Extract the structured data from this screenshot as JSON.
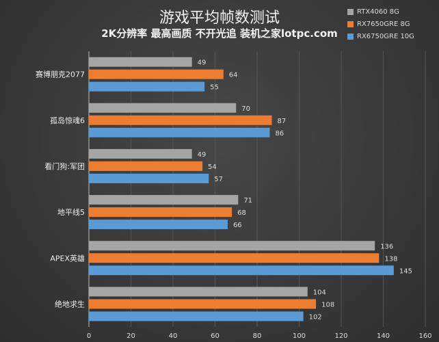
{
  "chart_data": {
    "type": "bar",
    "orientation": "horizontal",
    "title": "游戏平均帧数测试",
    "subtitle": "2K分辨率 最高画质 不开光追  装机之家lotpc.com",
    "categories": [
      "赛博朋克2077",
      "孤岛惊魂6",
      "看门狗:军团",
      "地平线5",
      "APEX英雄",
      "绝地求生"
    ],
    "series": [
      {
        "name": "RTX4060 8G",
        "color": "#a5a5a5",
        "values": [
          49,
          70,
          49,
          71,
          136,
          104
        ]
      },
      {
        "name": "RX7650GRE 8G",
        "color": "#ed7d31",
        "values": [
          64,
          87,
          54,
          68,
          138,
          108
        ]
      },
      {
        "name": "RX6750GRE 10G",
        "color": "#5b9bd5",
        "values": [
          55,
          86,
          57,
          66,
          145,
          102
        ]
      }
    ],
    "xlim": [
      0,
      160
    ],
    "xticks": [
      0,
      20,
      40,
      60,
      80,
      100,
      120,
      140,
      160
    ],
    "grid": true,
    "legend_position": "top-right"
  }
}
